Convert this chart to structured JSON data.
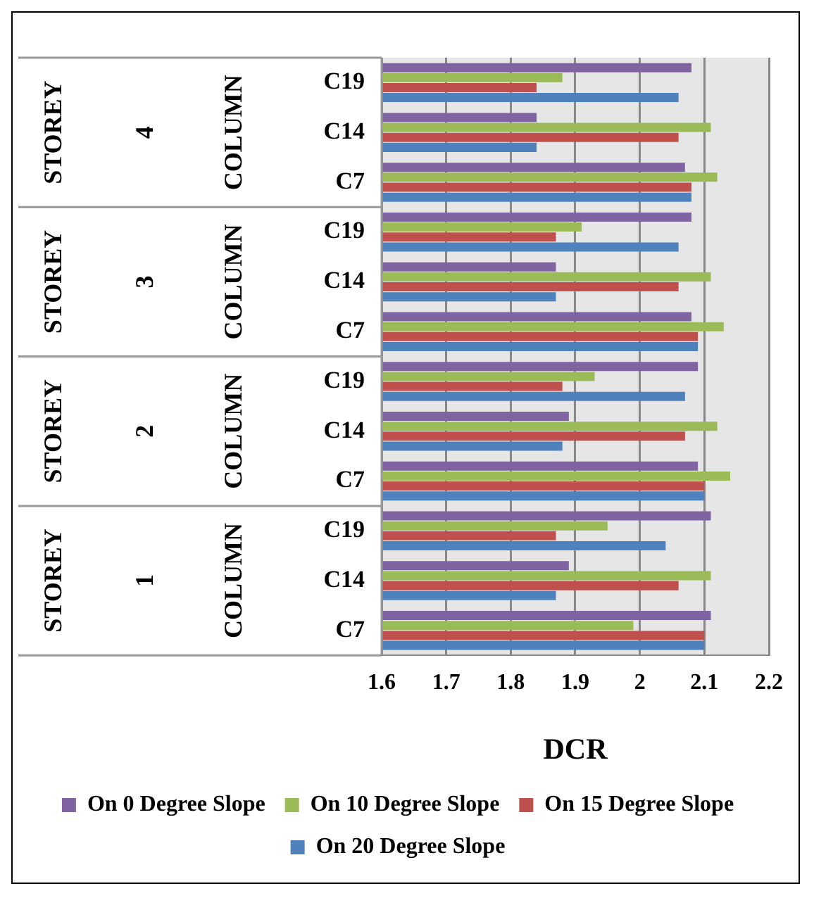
{
  "chart_data": {
    "type": "bar",
    "orientation": "horizontal",
    "xlabel": "DCR",
    "categories": [
      "C19",
      "C14",
      "C7",
      "C19",
      "C14",
      "C7",
      "C19",
      "C14",
      "C7",
      "C19",
      "C14",
      "C7"
    ],
    "annotations": [
      "STOREY",
      "4",
      "COLUMN",
      "STOREY",
      "3",
      "COLUMN",
      "STOREY",
      "2",
      "COLUMN",
      "STOREY",
      "1",
      "COLUMN"
    ],
    "series": [
      {
        "name": "On 0 Degree Slope",
        "color": "#8064a2",
        "values": [
          2.08,
          1.84,
          2.07,
          2.08,
          1.87,
          2.08,
          2.09,
          1.89,
          2.09,
          2.11,
          1.89,
          2.11
        ]
      },
      {
        "name": "On 10 Degree Slope",
        "color": "#9bbb59",
        "values": [
          1.88,
          2.11,
          2.12,
          1.91,
          2.11,
          2.13,
          1.93,
          2.12,
          2.14,
          1.95,
          2.11,
          1.99
        ]
      },
      {
        "name": "On 15 Degree Slope",
        "color": "#c0504d",
        "values": [
          1.84,
          2.06,
          2.08,
          1.87,
          2.06,
          2.09,
          1.88,
          2.07,
          2.1,
          1.87,
          2.06,
          2.1
        ]
      },
      {
        "name": "On 20 Degree Slope",
        "color": "#4f81bd",
        "values": [
          2.06,
          1.84,
          2.08,
          2.06,
          1.87,
          2.09,
          2.07,
          1.88,
          2.1,
          2.04,
          1.87,
          2.1
        ]
      }
    ],
    "xlim": [
      1.6,
      2.2
    ],
    "xticks": [
      1.6,
      1.7,
      1.8,
      1.9,
      2,
      2.1,
      2.2
    ],
    "grid": "x",
    "legend": "bottom"
  }
}
